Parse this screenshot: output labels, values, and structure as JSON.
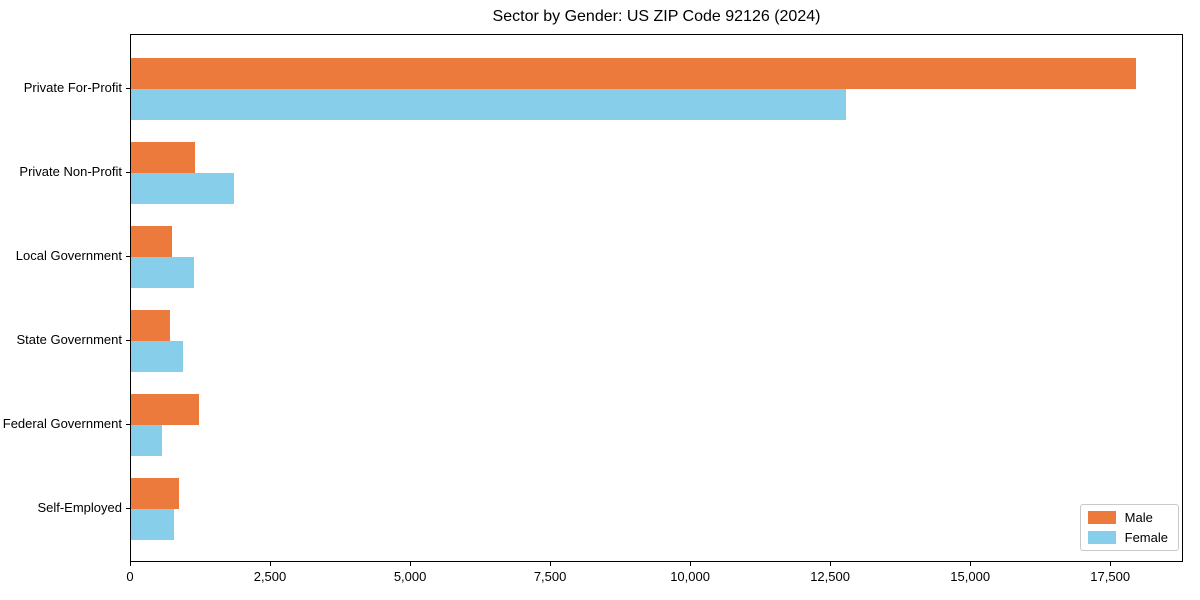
{
  "chart_data": {
    "type": "bar",
    "orientation": "horizontal",
    "title": "Sector by Gender: US ZIP Code 92126 (2024)",
    "categories": [
      "Private For-Profit",
      "Private Non-Profit",
      "Local Government",
      "State Government",
      "Federal Government",
      "Self-Employed"
    ],
    "series": [
      {
        "name": "Male",
        "color": "#ec7a3c",
        "values": [
          17950,
          1140,
          730,
          700,
          1220,
          850
        ]
      },
      {
        "name": "Female",
        "color": "#87ceeb",
        "values": [
          12770,
          1840,
          1130,
          920,
          550,
          760
        ]
      }
    ],
    "xlabel": "",
    "ylabel": "",
    "xlim": [
      0,
      18800
    ],
    "xticks": [
      0,
      2500,
      5000,
      7500,
      10000,
      12500,
      15000,
      17500
    ],
    "xtick_labels": [
      "0",
      "2,500",
      "5,000",
      "7,500",
      "10,000",
      "12,500",
      "15,000",
      "17,500"
    ],
    "legend": {
      "position": "lower right",
      "labels": [
        "Male",
        "Female"
      ]
    },
    "grid": false,
    "axis_color": "#000000",
    "text_color": "#000000",
    "background_color": "#ffffff"
  }
}
